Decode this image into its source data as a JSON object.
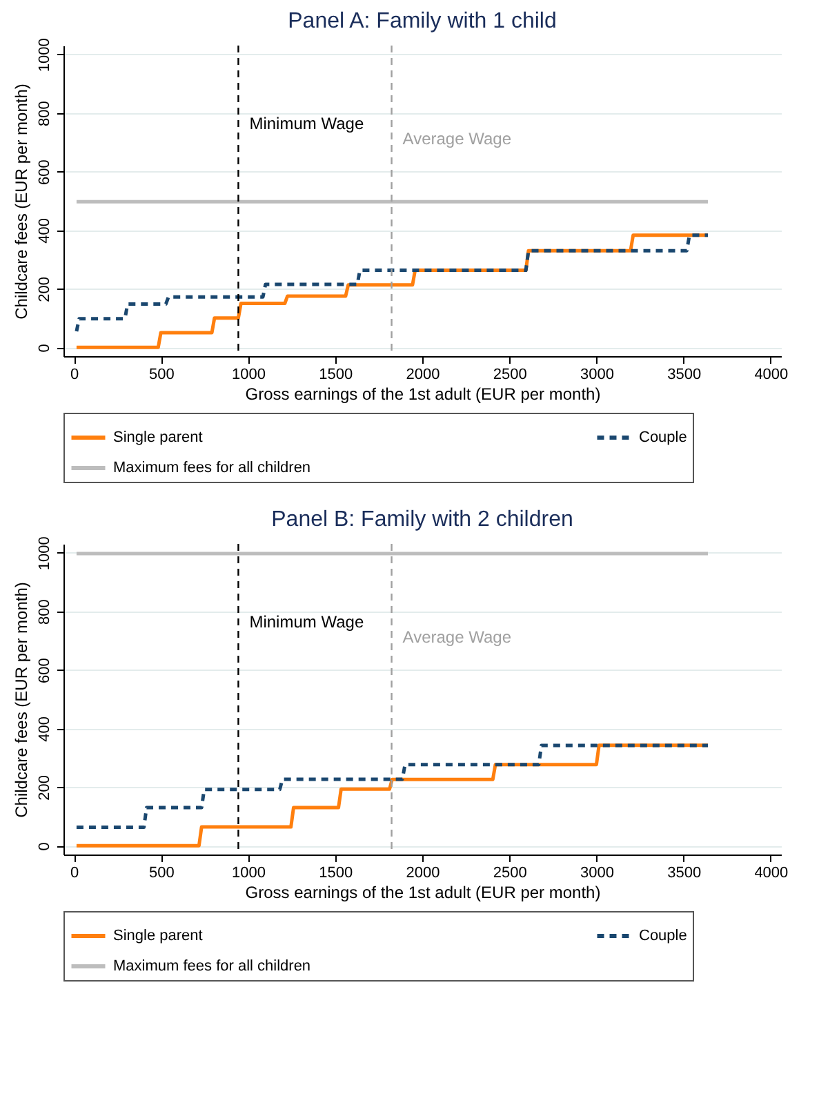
{
  "chart_data": [
    {
      "type": "line",
      "title": "Panel A: Family with 1 child",
      "xlabel": "Gross earnings of the 1st adult (EUR per month)",
      "ylabel": "Childcare fees (EUR per month)",
      "xlim": [
        -60,
        4060
      ],
      "ylim": [
        -30,
        1030
      ],
      "xticks": [
        0,
        500,
        1000,
        1500,
        2000,
        2500,
        3000,
        3500,
        4000
      ],
      "yticks": [
        0,
        200,
        400,
        600,
        800,
        1000
      ],
      "grid": "y",
      "legend": "bottom",
      "series": [
        {
          "name": "Single parent",
          "color": "#ff7f0e",
          "line_style": "solid",
          "x": [
            15,
            484,
            499,
            792,
            807,
            944,
            959,
            1211,
            1226,
            1560,
            1575,
            1944,
            1959,
            2595,
            2610,
            3196,
            3211,
            3640
          ],
          "values": [
            0,
            0,
            50,
            50,
            100,
            100,
            150,
            150,
            175,
            175,
            213,
            213,
            263,
            263,
            330,
            330,
            383,
            383
          ]
        },
        {
          "name": "Couple",
          "color": "#1a476f",
          "line_style": "dashed",
          "x": [
            15,
            30,
            293,
            308,
            528,
            543,
            1085,
            1100,
            1627,
            1642,
            2595,
            2610,
            3519,
            3534,
            3640
          ],
          "values": [
            55,
            98,
            98,
            148,
            148,
            172,
            172,
            215,
            215,
            263,
            263,
            330,
            330,
            383,
            383
          ]
        },
        {
          "name": "Maximum fees for all children",
          "color": "#bdbdbd",
          "line_style": "solid",
          "x": [
            15,
            3640
          ],
          "values": [
            497,
            497
          ]
        }
      ],
      "ref_lines": [
        {
          "axis": "x",
          "value": 944,
          "label": "Minimum Wage",
          "color": "#000000",
          "line_style": "dashed"
        },
        {
          "axis": "x",
          "value": 1824,
          "label": "Average Wage",
          "color": "#a0a0a0",
          "line_style": "dashed"
        }
      ]
    },
    {
      "type": "line",
      "title": "Panel B: Family with 2 children",
      "xlabel": "Gross earnings of the 1st adult (EUR per month)",
      "ylabel": "Childcare fees (EUR per month)",
      "xlim": [
        -60,
        4060
      ],
      "ylim": [
        -30,
        1030
      ],
      "xticks": [
        0,
        500,
        1000,
        1500,
        2000,
        2500,
        3000,
        3500,
        4000
      ],
      "yticks": [
        0,
        200,
        400,
        600,
        800,
        1000
      ],
      "grid": "y",
      "legend": "bottom",
      "series": [
        {
          "name": "Single parent",
          "color": "#ff7f0e",
          "line_style": "solid",
          "x": [
            15,
            718,
            733,
            1246,
            1261,
            1519,
            1534,
            1812,
            1827,
            2405,
            2420,
            3000,
            3015,
            3640
          ],
          "values": [
            0,
            0,
            64,
            64,
            130,
            130,
            193,
            193,
            226,
            226,
            277,
            277,
            343,
            343
          ]
        },
        {
          "name": "Couple",
          "color": "#1a476f",
          "line_style": "dashed",
          "x": [
            15,
            402,
            417,
            733,
            748,
            1182,
            1197,
            1886,
            1901,
            2669,
            2684,
            3640
          ],
          "values": [
            63,
            63,
            130,
            130,
            192,
            192,
            227,
            227,
            277,
            277,
            342,
            342
          ]
        },
        {
          "name": "Maximum fees for all children",
          "color": "#bdbdbd",
          "line_style": "solid",
          "x": [
            15,
            3640
          ],
          "values": [
            997,
            997
          ]
        }
      ],
      "ref_lines": [
        {
          "axis": "x",
          "value": 944,
          "label": "Minimum Wage",
          "color": "#000000",
          "line_style": "dashed"
        },
        {
          "axis": "x",
          "value": 1824,
          "label": "Average Wage",
          "color": "#a0a0a0",
          "line_style": "dashed"
        }
      ]
    }
  ]
}
